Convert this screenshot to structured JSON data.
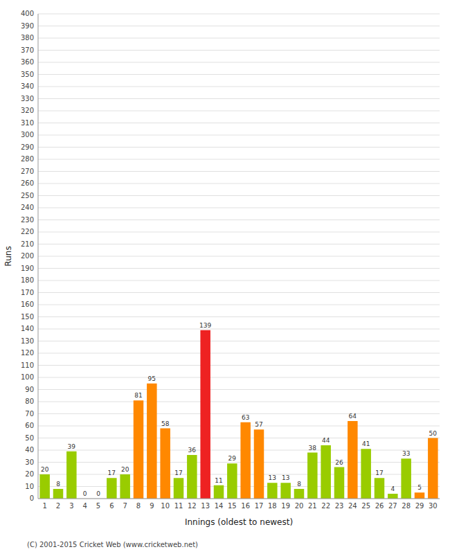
{
  "chart_data": {
    "type": "bar",
    "x_label": "Innings (oldest to newest)",
    "y_label": "Runs",
    "categories": [
      "1",
      "2",
      "3",
      "4",
      "5",
      "6",
      "7",
      "8",
      "9",
      "10",
      "11",
      "12",
      "13",
      "14",
      "15",
      "16",
      "17",
      "18",
      "19",
      "20",
      "21",
      "22",
      "23",
      "24",
      "25",
      "26",
      "27",
      "28",
      "29",
      "30"
    ],
    "values": [
      20,
      8,
      39,
      0,
      0,
      17,
      20,
      81,
      95,
      58,
      17,
      36,
      139,
      11,
      29,
      63,
      57,
      13,
      13,
      8,
      38,
      44,
      26,
      64,
      41,
      17,
      4,
      33,
      5,
      50
    ],
    "colors": [
      "#99cc00",
      "#99cc00",
      "#99cc00",
      "#99cc00",
      "#99cc00",
      "#99cc00",
      "#99cc00",
      "#ff8800",
      "#ff8800",
      "#ff8800",
      "#99cc00",
      "#99cc00",
      "#ee2222",
      "#99cc00",
      "#99cc00",
      "#ff8800",
      "#ff8800",
      "#99cc00",
      "#99cc00",
      "#99cc00",
      "#99cc00",
      "#99cc00",
      "#99cc00",
      "#ff8800",
      "#99cc00",
      "#99cc00",
      "#99cc00",
      "#99cc00",
      "#ff8800",
      "#ff8800"
    ],
    "ylim": [
      0,
      400
    ],
    "yticks": [
      0,
      10,
      20,
      30,
      40,
      50,
      60,
      70,
      80,
      90,
      100,
      110,
      120,
      130,
      140,
      150,
      160,
      170,
      180,
      190,
      200,
      210,
      220,
      230,
      240,
      250,
      260,
      270,
      280,
      290,
      300,
      310,
      320,
      330,
      340,
      350,
      360,
      370,
      380,
      390,
      400
    ],
    "grid": true,
    "data_labels": true,
    "annotations": [
      "(C) 2001-2015 Cricket Web (www.cricketweb.net)"
    ]
  }
}
